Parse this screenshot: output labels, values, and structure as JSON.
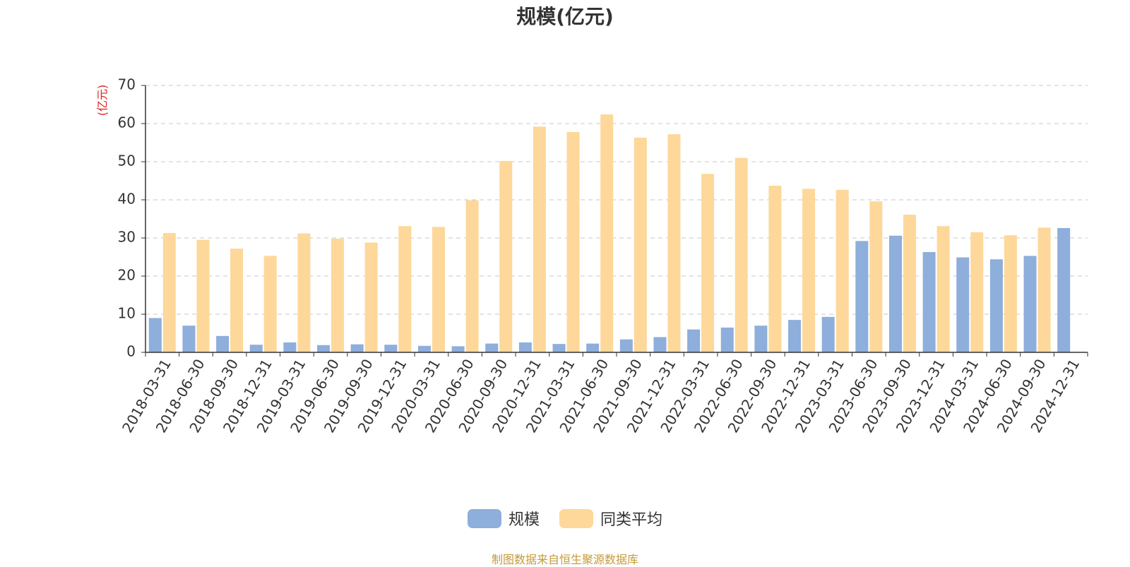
{
  "chart_data": {
    "type": "bar",
    "title": "规模(亿元)",
    "ylabel": "(亿元)",
    "ylim": [
      0,
      70
    ],
    "yticks": [
      0,
      10,
      20,
      30,
      40,
      50,
      60,
      70
    ],
    "grid": true,
    "legend_position": "bottom",
    "categories": [
      "2018-03-31",
      "2018-06-30",
      "2018-09-30",
      "2018-12-31",
      "2019-03-31",
      "2019-06-30",
      "2019-09-30",
      "2019-12-31",
      "2020-03-31",
      "2020-06-30",
      "2020-09-30",
      "2020-12-31",
      "2021-03-31",
      "2021-06-30",
      "2021-09-30",
      "2021-12-31",
      "2022-03-31",
      "2022-06-30",
      "2022-09-30",
      "2022-12-31",
      "2023-03-31",
      "2023-06-30",
      "2023-09-30",
      "2023-12-31",
      "2024-03-31",
      "2024-06-30",
      "2024-09-30",
      "2024-12-31"
    ],
    "series": [
      {
        "name": "规模",
        "color": "#8eaedc",
        "values": [
          9.0,
          7.0,
          4.3,
          2.0,
          2.6,
          1.9,
          2.1,
          2.0,
          1.7,
          1.6,
          2.3,
          2.6,
          2.2,
          2.3,
          3.4,
          4.0,
          6.0,
          6.5,
          7.0,
          8.5,
          9.3,
          29.2,
          30.6,
          26.3,
          24.9,
          24.4,
          25.3,
          32.6
        ]
      },
      {
        "name": "同类平均",
        "color": "#fdd89a",
        "values": [
          31.3,
          29.5,
          27.2,
          25.3,
          31.2,
          29.8,
          28.8,
          33.1,
          32.9,
          39.9,
          50.2,
          59.2,
          57.8,
          62.4,
          56.3,
          57.2,
          46.8,
          51.0,
          43.7,
          42.9,
          42.6,
          39.6,
          36.1,
          33.1,
          31.5,
          30.7,
          32.7,
          null
        ]
      }
    ]
  },
  "source_note": "制图数据来自恒生聚源数据库"
}
